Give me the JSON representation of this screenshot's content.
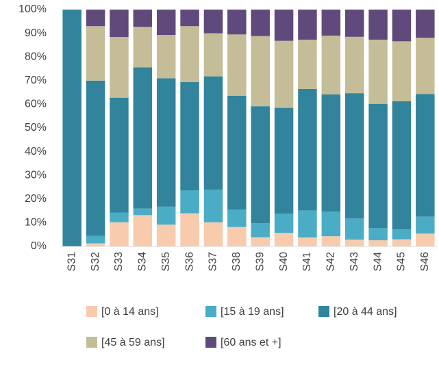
{
  "chart_data": {
    "type": "stacked-bar",
    "categories": [
      "S31",
      "S32",
      "S33",
      "S34",
      "S35",
      "S36",
      "S37",
      "S38",
      "S39",
      "S40",
      "S41",
      "S42",
      "S43",
      "S44",
      "S45",
      "S46"
    ],
    "series": [
      {
        "name": "[0 à 14 ans]",
        "color": "#f8cbad",
        "values": [
          0,
          1.3,
          10.2,
          13.2,
          9.2,
          14,
          10.2,
          8.2,
          3.9,
          5.7,
          3.8,
          4.3,
          2.9,
          2.6,
          3,
          5.4
        ]
      },
      {
        "name": "[15 à 19 ans]",
        "color": "#4bacc6",
        "values": [
          0,
          3.2,
          4.1,
          2.8,
          7.6,
          9.7,
          13.8,
          7.4,
          5.9,
          8.1,
          11.4,
          10.4,
          8.9,
          5.1,
          4.2,
          7.2
        ]
      },
      {
        "name": "[20 à 44 ans]",
        "color": "#31849b",
        "values": [
          100,
          65.5,
          48.5,
          59.6,
          54.2,
          45.7,
          47.8,
          48,
          49.4,
          44.7,
          51.3,
          49.5,
          52.9,
          52.5,
          54.1,
          51.7
        ]
      },
      {
        "name": "[45 à 59 ans]",
        "color": "#c4bd97",
        "values": [
          0,
          23,
          25.6,
          17.1,
          18.3,
          23.6,
          18.2,
          25.9,
          29.6,
          28.3,
          20.8,
          24.8,
          23.8,
          27.1,
          25.3,
          23.8
        ]
      },
      {
        "name": "[60 ans et +]",
        "color": "#604a7b",
        "values": [
          0,
          7,
          11.6,
          7.3,
          10.7,
          7,
          10,
          10.5,
          11.2,
          13.2,
          12.7,
          11,
          11.5,
          12.7,
          13.4,
          11.9
        ]
      }
    ],
    "ylim": [
      0,
      100
    ],
    "yticks": [
      {
        "value": 0,
        "label": "0%"
      },
      {
        "value": 10,
        "label": "10%"
      },
      {
        "value": 20,
        "label": "20%"
      },
      {
        "value": 30,
        "label": "30%"
      },
      {
        "value": 40,
        "label": "40%"
      },
      {
        "value": 50,
        "label": "50%"
      },
      {
        "value": 60,
        "label": "60%"
      },
      {
        "value": 70,
        "label": "70%"
      },
      {
        "value": 80,
        "label": "80%"
      },
      {
        "value": 90,
        "label": "90%"
      },
      {
        "value": 100,
        "label": "100%"
      }
    ],
    "grid": false,
    "legend": "bottom"
  }
}
